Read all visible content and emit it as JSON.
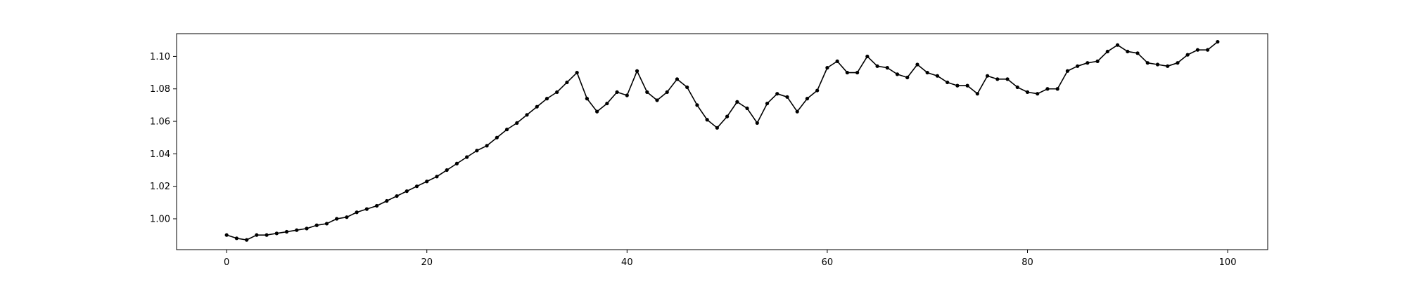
{
  "chart_data": {
    "type": "line",
    "title": "",
    "xlabel": "",
    "ylabel": "",
    "xlim": [
      -5,
      104
    ],
    "ylim": [
      0.981,
      1.114
    ],
    "x_ticks": [
      0,
      20,
      40,
      60,
      80,
      100
    ],
    "y_ticks": [
      1.0,
      1.02,
      1.04,
      1.06,
      1.08,
      1.1
    ],
    "x_tick_labels": [
      "0",
      "20",
      "40",
      "60",
      "80",
      "100"
    ],
    "y_tick_labels": [
      "1.00",
      "1.02",
      "1.04",
      "1.06",
      "1.08",
      "1.10"
    ],
    "grid": false,
    "legend": false,
    "line_color": "#000000",
    "marker": "circle",
    "series": [
      {
        "x": [
          0,
          1,
          2,
          3,
          4,
          5,
          6,
          7,
          8,
          9,
          10,
          11,
          12,
          13,
          14,
          15,
          16,
          17,
          18,
          19,
          20,
          21,
          22,
          23,
          24,
          25,
          26,
          27,
          28,
          29,
          30,
          31,
          32,
          33,
          34,
          35,
          36,
          37,
          38,
          39,
          40,
          41,
          42,
          43,
          44,
          45,
          46,
          47,
          48,
          49,
          50,
          51,
          52,
          53,
          54,
          55,
          56,
          57,
          58,
          59,
          60,
          61,
          62,
          63,
          64,
          65,
          66,
          67,
          68,
          69,
          70,
          71,
          72,
          73,
          74,
          75,
          76,
          77,
          78,
          79,
          80,
          81,
          82,
          83,
          84,
          85,
          86,
          87,
          88,
          89,
          90,
          91,
          92,
          93,
          94,
          95,
          96,
          97,
          98,
          99
        ],
        "y": [
          0.99,
          0.988,
          0.987,
          0.99,
          0.99,
          0.991,
          0.992,
          0.993,
          0.994,
          0.996,
          0.997,
          1.0,
          1.001,
          1.004,
          1.006,
          1.008,
          1.011,
          1.014,
          1.017,
          1.02,
          1.023,
          1.026,
          1.03,
          1.034,
          1.038,
          1.042,
          1.045,
          1.05,
          1.055,
          1.059,
          1.064,
          1.069,
          1.074,
          1.078,
          1.084,
          1.09,
          1.074,
          1.066,
          1.071,
          1.078,
          1.076,
          1.091,
          1.078,
          1.073,
          1.078,
          1.086,
          1.081,
          1.07,
          1.061,
          1.056,
          1.063,
          1.072,
          1.068,
          1.059,
          1.071,
          1.077,
          1.075,
          1.066,
          1.074,
          1.079,
          1.093,
          1.097,
          1.09,
          1.09,
          1.1,
          1.094,
          1.093,
          1.089,
          1.087,
          1.095,
          1.09,
          1.088,
          1.084,
          1.082,
          1.082,
          1.077,
          1.088,
          1.086,
          1.086,
          1.081,
          1.078,
          1.077,
          1.08,
          1.08,
          1.091,
          1.094,
          1.096,
          1.097,
          1.103,
          1.107,
          1.103,
          1.102,
          1.096,
          1.095,
          1.094,
          1.096,
          1.101,
          1.104,
          1.104,
          1.109
        ]
      }
    ]
  }
}
